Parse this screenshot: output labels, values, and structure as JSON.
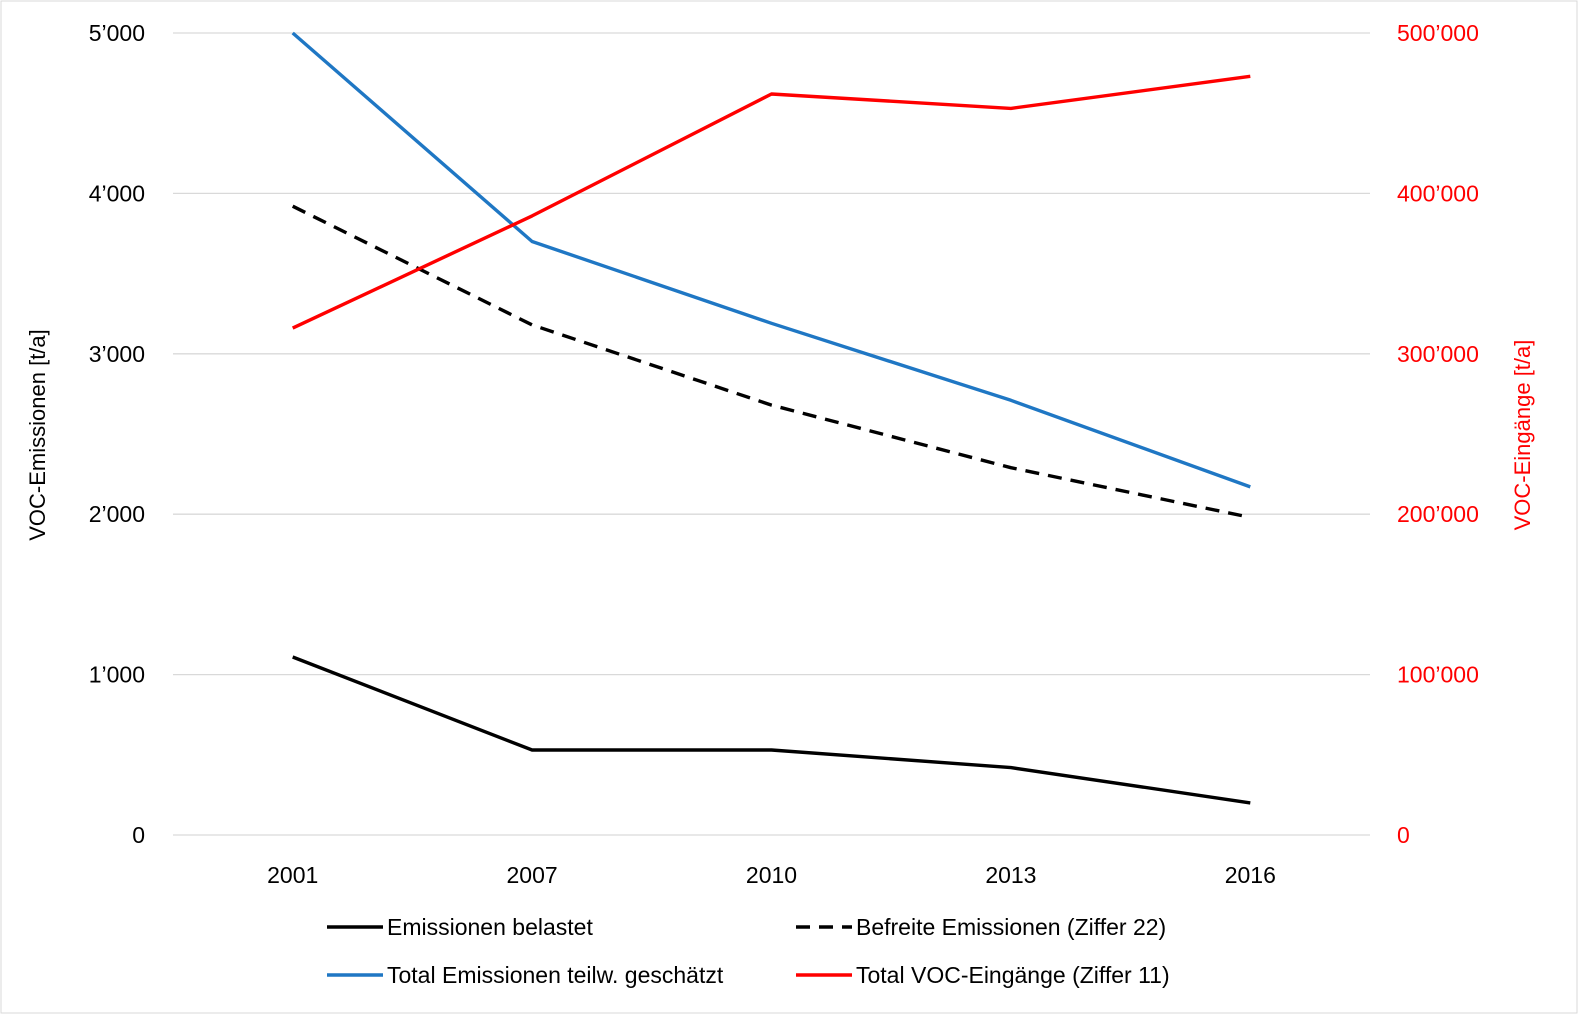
{
  "chart_data": {
    "type": "line",
    "categories": [
      "2001",
      "2007",
      "2010",
      "2013",
      "2016"
    ],
    "y_left": {
      "label": "VOC-Emissionen [t/a]",
      "range": [
        0,
        5000
      ],
      "ticks": [
        0,
        1000,
        2000,
        3000,
        4000,
        5000
      ],
      "tick_labels": [
        "0",
        "1’000",
        "2’000",
        "3’000",
        "4’000",
        "5’000"
      ]
    },
    "y_right": {
      "label": "VOC-Eingänge [t/a]",
      "range": [
        0,
        500000
      ],
      "ticks": [
        0,
        100000,
        200000,
        300000,
        400000,
        500000
      ],
      "tick_labels": [
        "0",
        "100’000",
        "200’000",
        "300’000",
        "400’000",
        "500’000"
      ],
      "color": "#ff0000"
    },
    "series": [
      {
        "name": "Emissionen belastet",
        "axis": "left",
        "color": "#000000",
        "dash": "solid",
        "values": [
          1110,
          530,
          530,
          420,
          200
        ]
      },
      {
        "name": "Befreite Emissionen (Ziffer 22)",
        "axis": "left",
        "color": "#000000",
        "dash": "dashed",
        "values": [
          3920,
          3180,
          2680,
          2290,
          1980
        ]
      },
      {
        "name": "Total Emissionen teilw. geschätzt",
        "axis": "left",
        "color": "#1f77c4",
        "dash": "solid",
        "values": [
          5000,
          3700,
          3190,
          2710,
          2170
        ]
      },
      {
        "name": "Total VOC-Eingänge (Ziffer 11)",
        "axis": "right",
        "color": "#ff0000",
        "dash": "solid",
        "values": [
          316000,
          386000,
          462000,
          453000,
          473000
        ]
      }
    ],
    "grid": true,
    "legend_position": "bottom"
  }
}
